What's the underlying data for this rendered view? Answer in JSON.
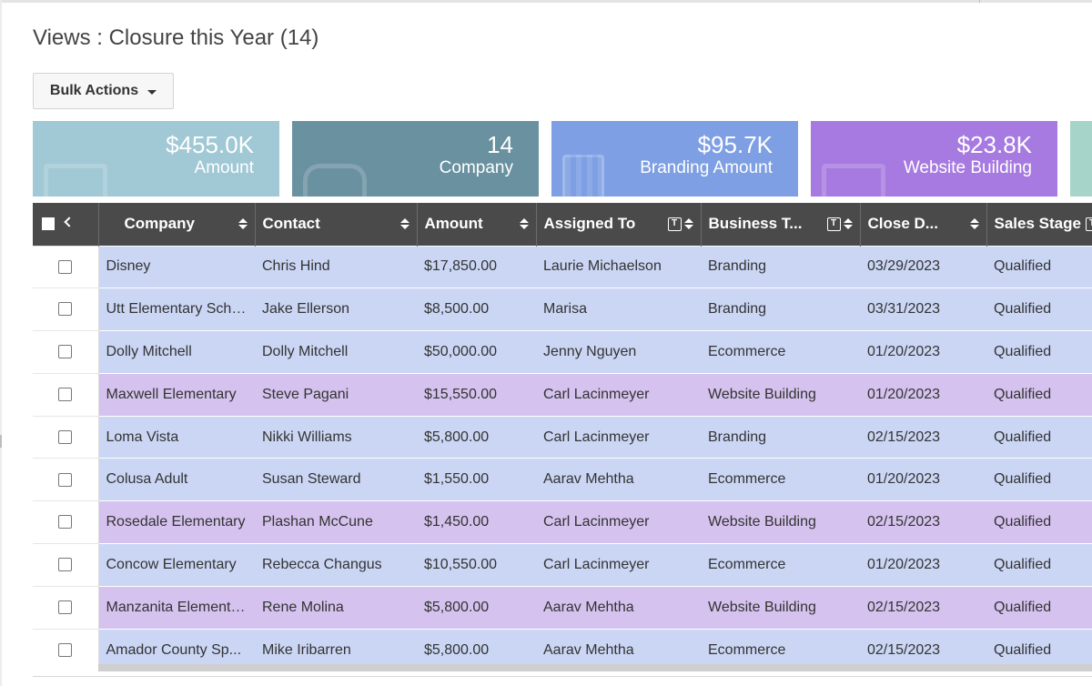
{
  "view": {
    "title": "Views : Closure this Year (14)"
  },
  "toolbar": {
    "bulk_actions_label": "Bulk Actions",
    "bulk_actions_icon": "caret-down-icon"
  },
  "tiles": [
    {
      "value": "$455.0K",
      "label": "Amount",
      "color": "#a0c8d5",
      "icon": "money-icon"
    },
    {
      "value": "14",
      "label": "Company",
      "color": "#6a91a0",
      "icon": "house-icon"
    },
    {
      "value": "$95.7K",
      "label": "Branding Amount",
      "color": "#7e9fe3",
      "icon": "building-icon"
    },
    {
      "value": "$23.8K",
      "label": "Website Building",
      "color": "#a67ae0",
      "icon": "money-icon"
    }
  ],
  "table": {
    "columns": [
      "Company",
      "Contact",
      "Amount",
      "Assigned To",
      "Business T...",
      "Close D...",
      "Sales Stage"
    ],
    "rows": [
      {
        "company": "Disney",
        "contact": "Chris Hind",
        "amount": "$17,850.00",
        "assigned_to": "Laurie Michaelson",
        "business_type": "Branding",
        "close_date": "03/29/2023",
        "sales_stage": "Qualified"
      },
      {
        "company": "Utt Elementary School",
        "contact": "Jake Ellerson",
        "amount": "$8,500.00",
        "assigned_to": "Marisa",
        "business_type": "Branding",
        "close_date": "03/31/2023",
        "sales_stage": "Qualified"
      },
      {
        "company": "Dolly Mitchell",
        "contact": "Dolly Mitchell",
        "amount": "$50,000.00",
        "assigned_to": "Jenny Nguyen",
        "business_type": "Ecommerce",
        "close_date": "01/20/2023",
        "sales_stage": "Qualified"
      },
      {
        "company": "Maxwell Elementary",
        "contact": "Steve Pagani",
        "amount": "$15,550.00",
        "assigned_to": "Carl Lacinmeyer",
        "business_type": "Website Building",
        "close_date": "01/20/2023",
        "sales_stage": "Qualified"
      },
      {
        "company": "Loma Vista",
        "contact": "Nikki Williams",
        "amount": "$5,800.00",
        "assigned_to": "Carl Lacinmeyer",
        "business_type": "Branding",
        "close_date": "02/15/2023",
        "sales_stage": "Qualified"
      },
      {
        "company": "Colusa Adult",
        "contact": "Susan Steward",
        "amount": "$1,550.00",
        "assigned_to": "Aarav Mehtha",
        "business_type": "Ecommerce",
        "close_date": "01/20/2023",
        "sales_stage": "Qualified"
      },
      {
        "company": "Rosedale Elementary",
        "contact": "Plashan McCune",
        "amount": "$1,450.00",
        "assigned_to": "Carl Lacinmeyer",
        "business_type": "Website Building",
        "close_date": "02/15/2023",
        "sales_stage": "Qualified"
      },
      {
        "company": "Concow Elementary",
        "contact": "Rebecca Changus",
        "amount": "$10,550.00",
        "assigned_to": "Carl Lacinmeyer",
        "business_type": "Ecommerce",
        "close_date": "01/20/2023",
        "sales_stage": "Qualified"
      },
      {
        "company": "Manzanita Elementary",
        "contact": "Rene Molina",
        "amount": "$5,800.00",
        "assigned_to": "Aarav Mehtha",
        "business_type": "Website Building",
        "close_date": "02/15/2023",
        "sales_stage": "Qualified"
      },
      {
        "company": "Amador County Sp...",
        "contact": "Mike Iribarren",
        "amount": "$5,800.00",
        "assigned_to": "Aarav Mehtha",
        "business_type": "Ecommerce",
        "close_date": "02/15/2023",
        "sales_stage": "Qualified"
      }
    ]
  },
  "row_colors": {
    "default": "#cad6f4",
    "website_building": "#d5c2ee"
  }
}
